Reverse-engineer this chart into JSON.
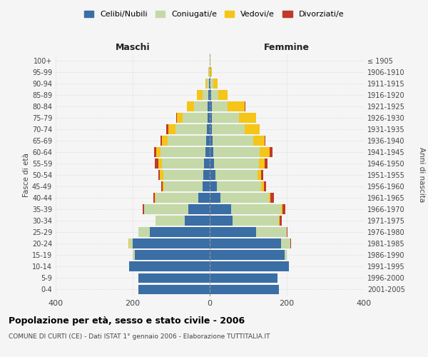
{
  "age_groups": [
    "0-4",
    "5-9",
    "10-14",
    "15-19",
    "20-24",
    "25-29",
    "30-34",
    "35-39",
    "40-44",
    "45-49",
    "50-54",
    "55-59",
    "60-64",
    "65-69",
    "70-74",
    "75-79",
    "80-84",
    "85-89",
    "90-94",
    "95-99",
    "100+"
  ],
  "birth_years": [
    "2001-2005",
    "1996-2000",
    "1991-1995",
    "1986-1990",
    "1981-1985",
    "1976-1980",
    "1971-1975",
    "1966-1970",
    "1961-1965",
    "1956-1960",
    "1951-1955",
    "1946-1950",
    "1941-1945",
    "1936-1940",
    "1931-1935",
    "1926-1930",
    "1921-1925",
    "1916-1920",
    "1911-1915",
    "1906-1910",
    "≤ 1905"
  ],
  "male_celibe": [
    185,
    185,
    210,
    195,
    200,
    155,
    65,
    55,
    30,
    18,
    16,
    14,
    12,
    10,
    8,
    5,
    5,
    3,
    2,
    0,
    0
  ],
  "male_coniugato": [
    0,
    0,
    0,
    5,
    10,
    30,
    75,
    115,
    110,
    100,
    105,
    110,
    115,
    100,
    80,
    65,
    35,
    15,
    5,
    2,
    0
  ],
  "male_vedovo": [
    0,
    0,
    0,
    0,
    2,
    0,
    0,
    0,
    2,
    5,
    8,
    10,
    12,
    15,
    20,
    15,
    20,
    15,
    5,
    2,
    0
  ],
  "male_divorziato": [
    0,
    0,
    0,
    0,
    0,
    0,
    0,
    5,
    5,
    3,
    5,
    8,
    5,
    2,
    5,
    2,
    0,
    0,
    0,
    0,
    0
  ],
  "female_nubile": [
    180,
    175,
    205,
    195,
    185,
    120,
    60,
    55,
    28,
    18,
    14,
    12,
    10,
    8,
    5,
    5,
    6,
    4,
    2,
    0,
    0
  ],
  "female_coniugata": [
    0,
    0,
    0,
    5,
    25,
    80,
    120,
    130,
    125,
    115,
    110,
    115,
    120,
    105,
    85,
    70,
    40,
    18,
    8,
    2,
    0
  ],
  "female_vedova": [
    0,
    0,
    0,
    0,
    0,
    0,
    2,
    3,
    5,
    8,
    10,
    15,
    25,
    30,
    40,
    45,
    45,
    25,
    10,
    3,
    1
  ],
  "female_divorziata": [
    0,
    0,
    0,
    0,
    2,
    2,
    5,
    8,
    8,
    5,
    5,
    8,
    8,
    2,
    0,
    0,
    2,
    0,
    0,
    0,
    0
  ],
  "colors": {
    "celibe": "#3a6ea5",
    "coniugato": "#c5d9a8",
    "vedovo": "#f5c518",
    "divorziato": "#c0392b"
  },
  "xlim": 400,
  "title": "Popolazione per età, sesso e stato civile - 2006",
  "subtitle": "COMUNE DI CURTI (CE) - Dati ISTAT 1° gennaio 2006 - Elaborazione TUTTITALIA.IT",
  "ylabel_left": "Fasce di età",
  "ylabel_right": "Anni di nascita",
  "xlabel_left": "Maschi",
  "xlabel_right": "Femmine",
  "legend_labels": [
    "Celibi/Nubili",
    "Coniugati/e",
    "Vedovi/e",
    "Divorziati/e"
  ],
  "background_color": "#f5f5f5",
  "grid_color": "#cccccc"
}
